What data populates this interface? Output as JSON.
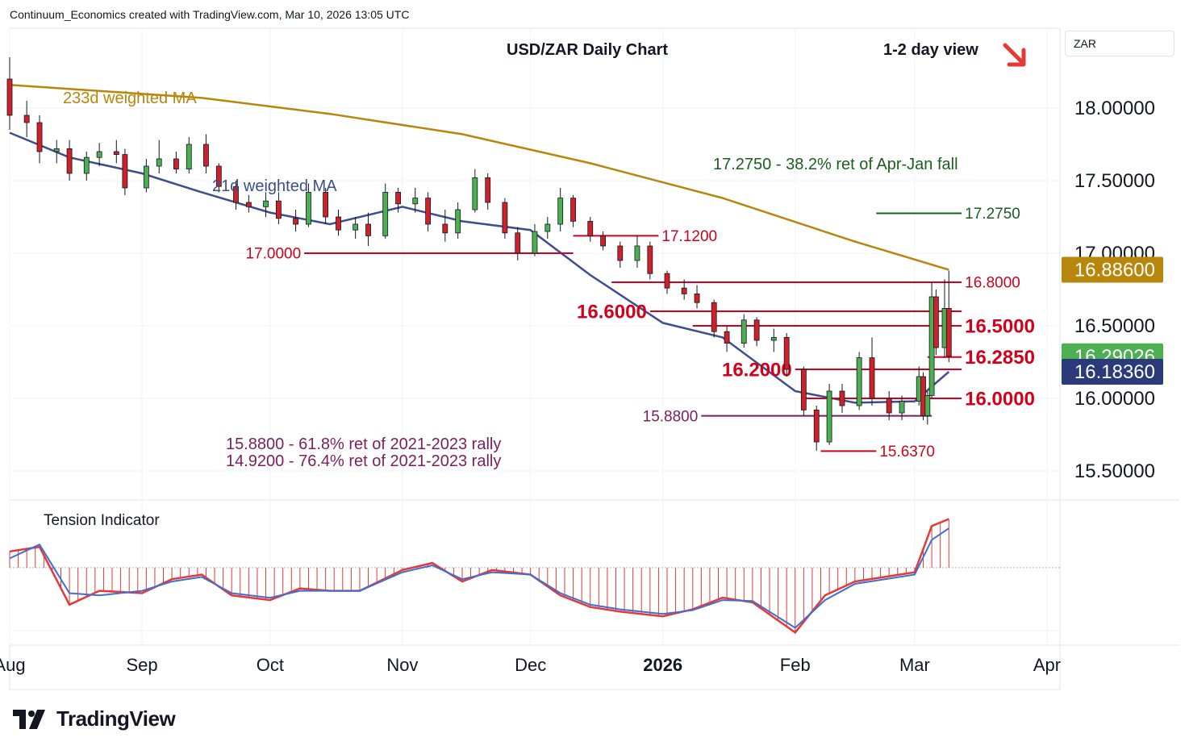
{
  "header": {
    "text": "Continuum_Economics created with TradingView.com, Mar 10, 2026 13:05 UTC"
  },
  "currency": "ZAR",
  "brand": {
    "name": "TradingView"
  },
  "colors": {
    "candle_up": "#4caf50",
    "candle_down": "#d0212a",
    "ma233": "#b8860b",
    "ma21": "#3d4e8f",
    "level_red": "#d0021b",
    "level_green": "#1b5e20",
    "fib_purple": "#7b1f5c",
    "osc_bar": "#e53935",
    "osc_signal": "#3c6fd6",
    "arrow": "#e53935"
  },
  "icons": {
    "view_arrow": "arrow-down-right-icon",
    "logo": "tradingview-logo-icon"
  },
  "chart_data": {
    "type": "candlestick",
    "title": "USD/ZAR Daily Chart",
    "view": "1-2 day view",
    "ylim": [
      15.3,
      18.55
    ],
    "y_ticks": [
      "18.00000",
      "17.50000",
      "17.00000",
      "16.50000",
      "16.00000",
      "15.50000"
    ],
    "y_tick_values": [
      18.0,
      17.5,
      17.0,
      16.5,
      16.0,
      15.5
    ],
    "x_ticks": [
      "Aug",
      "Sep",
      "Oct",
      "Nov",
      "Dec",
      "2026",
      "Feb",
      "Mar",
      "Apr"
    ],
    "x_tick_dates": [
      "2025-08-01",
      "2025-09-01",
      "2025-10-01",
      "2025-11-01",
      "2025-12-01",
      "2026-01-01",
      "2026-02-01",
      "2026-03-01",
      "2026-04-01"
    ],
    "price_tags": [
      {
        "label": "16.88600",
        "value": 16.886,
        "color": "#b8860b"
      },
      {
        "label": "16.29026",
        "value": 16.29026,
        "color": "#4caf50"
      },
      {
        "label": "16.18360",
        "value": 16.1836,
        "color": "#2a3a7a"
      }
    ],
    "indicators": [
      {
        "name": "233d weighted MA",
        "color": "#b8860b",
        "dates": [
          "2025-08-01",
          "2025-09-15",
          "2025-10-15",
          "2025-11-15",
          "2025-12-15",
          "2026-01-15",
          "2026-02-15",
          "2026-03-09"
        ],
        "values": [
          18.16,
          18.07,
          17.96,
          17.82,
          17.62,
          17.38,
          17.08,
          16.886
        ]
      },
      {
        "name": "21d weighted MA",
        "color": "#3d4e8f",
        "dates": [
          "2025-08-01",
          "2025-08-15",
          "2025-09-01",
          "2025-09-15",
          "2025-10-01",
          "2025-10-15",
          "2025-11-01",
          "2025-11-15",
          "2025-12-01",
          "2025-12-15",
          "2026-01-01",
          "2026-01-15",
          "2026-02-01",
          "2026-02-15",
          "2026-03-01",
          "2026-03-09"
        ],
        "values": [
          17.83,
          17.66,
          17.55,
          17.42,
          17.28,
          17.2,
          17.32,
          17.22,
          17.16,
          16.85,
          16.52,
          16.42,
          16.05,
          15.97,
          15.98,
          16.1836
        ]
      }
    ],
    "candles": [
      [
        "2025-08-01",
        18.2,
        18.35,
        17.85,
        17.95
      ],
      [
        "2025-08-05",
        17.95,
        18.05,
        17.8,
        17.9
      ],
      [
        "2025-08-08",
        17.9,
        17.95,
        17.62,
        17.7
      ],
      [
        "2025-08-12",
        17.7,
        17.78,
        17.62,
        17.72
      ],
      [
        "2025-08-15",
        17.72,
        17.78,
        17.5,
        17.55
      ],
      [
        "2025-08-19",
        17.55,
        17.7,
        17.5,
        17.66
      ],
      [
        "2025-08-22",
        17.66,
        17.76,
        17.6,
        17.7
      ],
      [
        "2025-08-26",
        17.7,
        17.78,
        17.62,
        17.68
      ],
      [
        "2025-08-28",
        17.68,
        17.72,
        17.4,
        17.45
      ],
      [
        "2025-09-02",
        17.45,
        17.65,
        17.42,
        17.6
      ],
      [
        "2025-09-05",
        17.6,
        17.78,
        17.55,
        17.65
      ],
      [
        "2025-09-09",
        17.65,
        17.7,
        17.55,
        17.58
      ],
      [
        "2025-09-12",
        17.58,
        17.8,
        17.55,
        17.75
      ],
      [
        "2025-09-16",
        17.75,
        17.82,
        17.55,
        17.6
      ],
      [
        "2025-09-19",
        17.6,
        17.62,
        17.42,
        17.46
      ],
      [
        "2025-09-23",
        17.46,
        17.5,
        17.3,
        17.35
      ],
      [
        "2025-09-26",
        17.35,
        17.4,
        17.28,
        17.32
      ],
      [
        "2025-09-30",
        17.32,
        17.42,
        17.25,
        17.36
      ],
      [
        "2025-10-03",
        17.36,
        17.42,
        17.2,
        17.24
      ],
      [
        "2025-10-07",
        17.24,
        17.3,
        17.15,
        17.2
      ],
      [
        "2025-10-10",
        17.2,
        17.48,
        17.18,
        17.42
      ],
      [
        "2025-10-14",
        17.42,
        17.45,
        17.2,
        17.25
      ],
      [
        "2025-10-17",
        17.25,
        17.3,
        17.12,
        17.16
      ],
      [
        "2025-10-21",
        17.16,
        17.25,
        17.1,
        17.2
      ],
      [
        "2025-10-24",
        17.2,
        17.28,
        17.05,
        17.12
      ],
      [
        "2025-10-28",
        17.12,
        17.48,
        17.1,
        17.42
      ],
      [
        "2025-10-31",
        17.42,
        17.45,
        17.28,
        17.34
      ],
      [
        "2025-11-04",
        17.34,
        17.45,
        17.28,
        17.38
      ],
      [
        "2025-11-07",
        17.38,
        17.42,
        17.15,
        17.2
      ],
      [
        "2025-11-11",
        17.2,
        17.3,
        17.08,
        17.14
      ],
      [
        "2025-11-14",
        17.14,
        17.35,
        17.1,
        17.3
      ],
      [
        "2025-11-18",
        17.3,
        17.58,
        17.28,
        17.52
      ],
      [
        "2025-11-21",
        17.52,
        17.55,
        17.3,
        17.35
      ],
      [
        "2025-11-25",
        17.35,
        17.38,
        17.1,
        17.14
      ],
      [
        "2025-11-28",
        17.14,
        17.18,
        16.95,
        17.0
      ],
      [
        "2025-12-02",
        17.0,
        17.2,
        16.98,
        17.15
      ],
      [
        "2025-12-05",
        17.15,
        17.25,
        17.1,
        17.2
      ],
      [
        "2025-12-08",
        17.2,
        17.45,
        17.15,
        17.38
      ],
      [
        "2025-12-11",
        17.38,
        17.4,
        17.18,
        17.22
      ],
      [
        "2025-12-15",
        17.22,
        17.25,
        17.08,
        17.12
      ],
      [
        "2025-12-18",
        17.12,
        17.15,
        17.02,
        17.05
      ],
      [
        "2025-12-22",
        17.05,
        17.08,
        16.9,
        16.95
      ],
      [
        "2025-12-26",
        16.95,
        17.12,
        16.9,
        17.05
      ],
      [
        "2025-12-29",
        17.05,
        17.08,
        16.82,
        16.86
      ],
      [
        "2026-01-02",
        16.86,
        16.88,
        16.72,
        16.76
      ],
      [
        "2026-01-06",
        16.76,
        16.82,
        16.68,
        16.72
      ],
      [
        "2026-01-09",
        16.72,
        16.78,
        16.62,
        16.66
      ],
      [
        "2026-01-13",
        16.66,
        16.68,
        16.42,
        16.46
      ],
      [
        "2026-01-16",
        16.46,
        16.5,
        16.32,
        16.38
      ],
      [
        "2026-01-20",
        16.38,
        16.58,
        16.35,
        16.54
      ],
      [
        "2026-01-23",
        16.54,
        16.56,
        16.36,
        16.4
      ],
      [
        "2026-01-27",
        16.4,
        16.48,
        16.32,
        16.42
      ],
      [
        "2026-01-30",
        16.42,
        16.45,
        16.15,
        16.2
      ],
      [
        "2026-02-03",
        16.2,
        16.22,
        15.88,
        15.92
      ],
      [
        "2026-02-06",
        15.92,
        15.95,
        15.64,
        15.7
      ],
      [
        "2026-02-09",
        15.7,
        16.1,
        15.68,
        16.05
      ],
      [
        "2026-02-12",
        16.05,
        16.1,
        15.9,
        15.95
      ],
      [
        "2026-02-16",
        15.95,
        16.32,
        15.92,
        16.28
      ],
      [
        "2026-02-19",
        16.28,
        16.42,
        15.95,
        16.0
      ],
      [
        "2026-02-23",
        16.0,
        16.05,
        15.85,
        15.9
      ],
      [
        "2026-02-26",
        15.9,
        16.02,
        15.85,
        15.98
      ],
      [
        "2026-03-02",
        15.98,
        16.22,
        15.95,
        16.15
      ],
      [
        "2026-03-03",
        16.15,
        16.18,
        15.85,
        15.88
      ],
      [
        "2026-03-04",
        15.88,
        16.05,
        15.82,
        16.02
      ],
      [
        "2026-03-05",
        16.02,
        16.8,
        16.0,
        16.7
      ],
      [
        "2026-03-06",
        16.7,
        16.75,
        16.3,
        16.35
      ],
      [
        "2026-03-08",
        16.35,
        16.82,
        16.28,
        16.62
      ],
      [
        "2026-03-09",
        16.62,
        16.88,
        16.25,
        16.29
      ]
    ],
    "levels": [
      {
        "label": "17.2750",
        "value": 17.275,
        "color": "#1b5e20",
        "x_from": "2026-02-20",
        "x_to": "2026-03-12",
        "label_side": "right",
        "bold": false
      },
      {
        "label": "17.1200",
        "value": 17.12,
        "color": "#d0021b",
        "x_from": "2025-12-11",
        "x_to": "2025-12-31",
        "label_side": "right",
        "bold": false
      },
      {
        "label": "17.0000",
        "value": 17.0,
        "color": "#d0021b",
        "x_from": "2025-10-09",
        "x_to": "2025-12-11",
        "label_side": "left",
        "bold": false
      },
      {
        "label": "16.8000",
        "value": 16.8,
        "color": "#d0021b",
        "x_from": "2025-12-20",
        "x_to": "2026-03-12",
        "label_side": "right",
        "bold": false
      },
      {
        "label": "16.6000",
        "value": 16.6,
        "color": "#d0021b",
        "x_from": "2025-12-29",
        "x_to": "2026-03-12",
        "label_side": "left",
        "bold": true
      },
      {
        "label": "16.5000",
        "value": 16.5,
        "color": "#d0021b",
        "x_from": "2026-01-08",
        "x_to": "2026-03-12",
        "label_side": "right",
        "bold": true
      },
      {
        "label": "16.2850",
        "value": 16.285,
        "color": "#d0021b",
        "x_from": "2026-03-04",
        "x_to": "2026-03-12",
        "label_side": "right",
        "bold": true
      },
      {
        "label": "16.2000",
        "value": 16.2,
        "color": "#d0021b",
        "x_from": "2026-02-01",
        "x_to": "2026-03-12",
        "label_side": "left",
        "bold": true
      },
      {
        "label": "16.0000",
        "value": 16.0,
        "color": "#d0021b",
        "x_from": "2026-02-03",
        "x_to": "2026-03-12",
        "label_side": "right",
        "bold": true
      },
      {
        "label": "15.8800",
        "value": 15.88,
        "color": "#7b1f5c",
        "x_from": "2026-01-10",
        "x_to": "2026-03-05",
        "label_side": "left",
        "bold": false
      },
      {
        "label": "15.6370",
        "value": 15.637,
        "color": "#d0021b",
        "x_from": "2026-02-07",
        "x_to": "2026-02-20",
        "label_side": "right",
        "bold": false
      }
    ],
    "annotations": [
      {
        "text": "233d weighted MA",
        "color": "#b8860b"
      },
      {
        "text": "21d weighted MA",
        "color": "#3d4e8f"
      },
      {
        "text": "17.2750 - 38.2% ret of Apr-Jan fall",
        "color": "#1b5e20"
      },
      {
        "text": "15.8800 - 61.8% ret of 2021-2023 rally",
        "color": "#7b1f5c"
      },
      {
        "text": "14.9200 - 76.4% ret of 2021-2023 rally",
        "color": "#7b1f5c"
      }
    ],
    "oscillator": {
      "name": "Tension Indicator",
      "dates": [
        "2025-08-01",
        "2025-08-08",
        "2025-08-15",
        "2025-08-22",
        "2025-09-01",
        "2025-09-08",
        "2025-09-15",
        "2025-09-22",
        "2025-10-01",
        "2025-10-08",
        "2025-10-15",
        "2025-10-22",
        "2025-11-01",
        "2025-11-08",
        "2025-11-15",
        "2025-11-22",
        "2025-12-01",
        "2025-12-08",
        "2025-12-15",
        "2025-12-22",
        "2026-01-01",
        "2026-01-08",
        "2026-01-15",
        "2026-01-22",
        "2026-02-01",
        "2026-02-08",
        "2026-02-15",
        "2026-02-22",
        "2026-03-01",
        "2026-03-05",
        "2026-03-09"
      ],
      "values": [
        0.35,
        0.45,
        -0.8,
        -0.5,
        -0.55,
        -0.25,
        -0.15,
        -0.6,
        -0.7,
        -0.45,
        -0.5,
        -0.5,
        -0.05,
        0.1,
        -0.3,
        -0.05,
        -0.15,
        -0.6,
        -0.85,
        -0.95,
        -1.05,
        -0.9,
        -0.65,
        -0.75,
        -1.4,
        -0.6,
        -0.3,
        -0.2,
        -0.1,
        0.9,
        1.05
      ],
      "signal": [
        0.2,
        0.5,
        -0.55,
        -0.6,
        -0.5,
        -0.3,
        -0.2,
        -0.55,
        -0.65,
        -0.5,
        -0.5,
        -0.5,
        -0.1,
        0.05,
        -0.25,
        -0.1,
        -0.15,
        -0.55,
        -0.8,
        -0.9,
        -1.0,
        -0.92,
        -0.7,
        -0.72,
        -1.3,
        -0.7,
        -0.35,
        -0.25,
        -0.15,
        0.6,
        0.85
      ],
      "range": [
        -1.5,
        1.2
      ]
    }
  }
}
